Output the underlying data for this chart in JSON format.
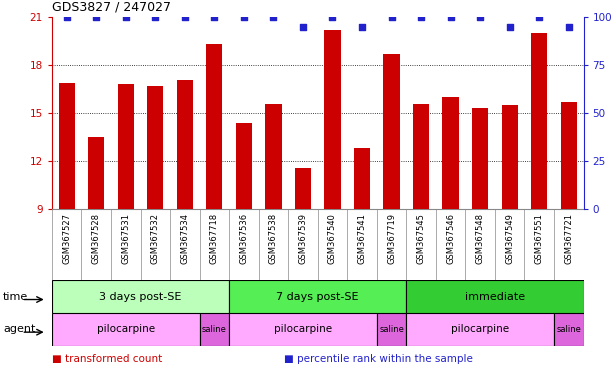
{
  "title": "GDS3827 / 247027",
  "samples": [
    "GSM367527",
    "GSM367528",
    "GSM367531",
    "GSM367532",
    "GSM367534",
    "GSM367718",
    "GSM367536",
    "GSM367538",
    "GSM367539",
    "GSM367540",
    "GSM367541",
    "GSM367719",
    "GSM367545",
    "GSM367546",
    "GSM367548",
    "GSM367549",
    "GSM367551",
    "GSM367721"
  ],
  "bar_values": [
    16.9,
    13.5,
    16.8,
    16.7,
    17.1,
    19.3,
    14.4,
    15.6,
    11.6,
    20.2,
    12.8,
    18.7,
    15.6,
    16.0,
    15.3,
    15.5,
    20.0,
    15.7
  ],
  "dot_values": [
    100,
    100,
    100,
    100,
    100,
    100,
    100,
    100,
    95,
    100,
    95,
    100,
    100,
    100,
    100,
    95,
    100,
    95
  ],
  "bar_color": "#cc0000",
  "dot_color": "#2222cc",
  "ylim_left": [
    9,
    21
  ],
  "yticks_left": [
    9,
    12,
    15,
    18,
    21
  ],
  "ylim_right": [
    0,
    100
  ],
  "yticks_right": [
    0,
    25,
    50,
    75,
    100
  ],
  "ytick_labels_right": [
    "0",
    "25",
    "50",
    "75",
    "100%"
  ],
  "grid_lines": [
    12,
    15,
    18
  ],
  "time_groups": [
    {
      "label": "3 days post-SE",
      "start": 0,
      "end": 5,
      "color": "#bbffbb"
    },
    {
      "label": "7 days post-SE",
      "start": 6,
      "end": 11,
      "color": "#55ee55"
    },
    {
      "label": "immediate",
      "start": 12,
      "end": 17,
      "color": "#33cc33"
    }
  ],
  "agent_groups": [
    {
      "label": "pilocarpine",
      "start": 0,
      "end": 4,
      "color": "#ffaaff"
    },
    {
      "label": "saline",
      "start": 5,
      "end": 5,
      "color": "#dd66dd"
    },
    {
      "label": "pilocarpine",
      "start": 6,
      "end": 10,
      "color": "#ffaaff"
    },
    {
      "label": "saline",
      "start": 11,
      "end": 11,
      "color": "#dd66dd"
    },
    {
      "label": "pilocarpine",
      "start": 12,
      "end": 16,
      "color": "#ffaaff"
    },
    {
      "label": "saline",
      "start": 17,
      "end": 17,
      "color": "#dd66dd"
    }
  ],
  "legend_items": [
    {
      "label": "transformed count",
      "color": "#cc0000"
    },
    {
      "label": "percentile rank within the sample",
      "color": "#2222cc"
    }
  ],
  "time_label": "time",
  "agent_label": "agent",
  "bar_width": 0.55,
  "background_color": "#ffffff",
  "tick_bg": "#dddddd",
  "border_color": "#888888"
}
